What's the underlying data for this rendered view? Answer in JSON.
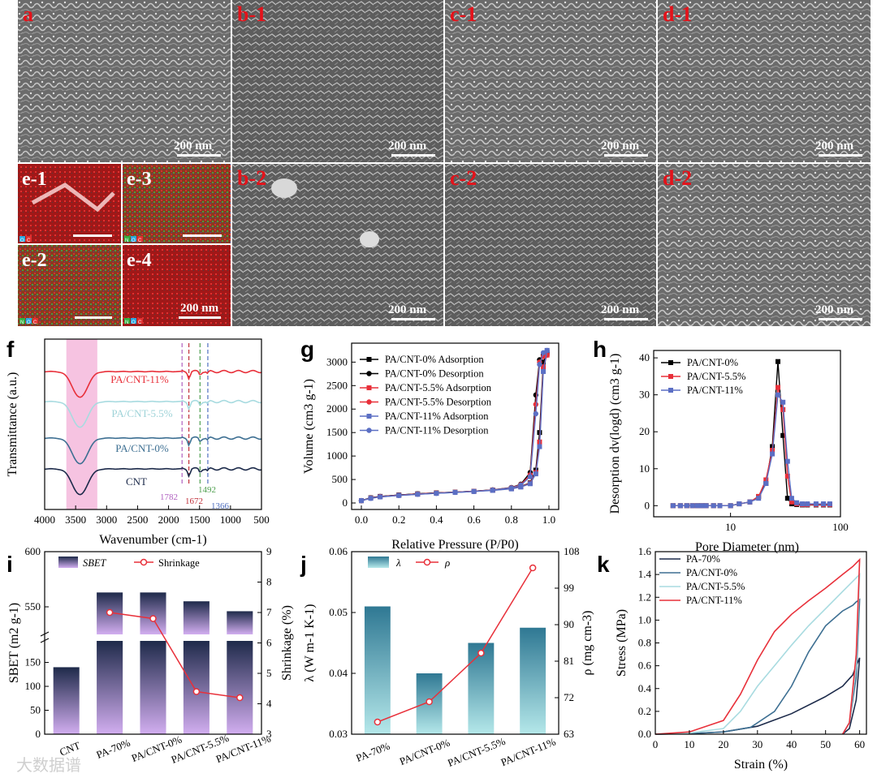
{
  "sem_panels": [
    {
      "id": "a",
      "label": "a",
      "scale": "200 nm"
    },
    {
      "id": "b1",
      "label": "b-1",
      "scale": "200 nm"
    },
    {
      "id": "c1",
      "label": "c-1",
      "scale": "200 nm"
    },
    {
      "id": "d1",
      "label": "d-1",
      "scale": "200 nm"
    },
    {
      "id": "b2",
      "label": "b-2",
      "scale": "200 nm"
    },
    {
      "id": "c2",
      "label": "c-2",
      "scale": "200 nm"
    },
    {
      "id": "d2",
      "label": "d-2",
      "scale": "200 nm"
    }
  ],
  "eds_panels": [
    {
      "id": "e1",
      "label": "e-1",
      "elements": [
        "O",
        "C"
      ]
    },
    {
      "id": "e3",
      "label": "e-3",
      "elements": [
        "N",
        "O",
        "C"
      ]
    },
    {
      "id": "e2",
      "label": "e-2",
      "elements": [
        "N",
        "O",
        "C"
      ]
    },
    {
      "id": "e4",
      "label": "e-4",
      "elements": [
        "N",
        "O",
        "C"
      ],
      "scale": "200 nm"
    }
  ],
  "panel_letters": {
    "f": "f",
    "g": "g",
    "h": "h",
    "i": "i",
    "j": "j",
    "k": "k"
  },
  "watermark": "大数据谱",
  "colors": {
    "black": "#000000",
    "red": "#e8303a",
    "blue": "#5b6fc4",
    "navy": "#1c2a4a",
    "steel": "#3d6f92",
    "light": "#a8dbe0",
    "pink": "#f5b8dc"
  },
  "chart_data": [
    {
      "id": "f",
      "type": "line",
      "xlabel": "Wavenumber (cm-1)",
      "ylabel": "Transmittance (a.u.)",
      "xlim": [
        4000,
        500
      ],
      "xticks": [
        "4000",
        "3500",
        "3000",
        "2500",
        "2000",
        "1500",
        "1000",
        "500"
      ],
      "series": [
        {
          "name": "PA/CNT-11%",
          "color": "#e8303a"
        },
        {
          "name": "PA/CNT-5.5%",
          "color": "#a8dbe0"
        },
        {
          "name": "PA/CNT-0%",
          "color": "#3d6f92"
        },
        {
          "name": "CNT",
          "color": "#1c2a4a"
        }
      ],
      "highlight_band": [
        3650,
        3150
      ],
      "peak_lines": [
        {
          "label": "1782",
          "x": 1782
        },
        {
          "label": "1672",
          "x": 1672
        },
        {
          "label": "1492",
          "x": 1492
        },
        {
          "label": "1366",
          "x": 1366
        }
      ]
    },
    {
      "id": "g",
      "type": "line",
      "xlabel": "Relative Pressure (P/P0)",
      "ylabel": "Volume (cm3 g-1)",
      "xlim": [
        0,
        1.0
      ],
      "ylim": [
        0,
        3300
      ],
      "xticks": [
        "0.0",
        "0.2",
        "0.4",
        "0.6",
        "0.8",
        "1.0"
      ],
      "yticks": [
        "0",
        "500",
        "1000",
        "1500",
        "2000",
        "2500",
        "3000"
      ],
      "x": [
        0.0,
        0.05,
        0.1,
        0.2,
        0.3,
        0.4,
        0.5,
        0.6,
        0.7,
        0.8,
        0.85,
        0.9,
        0.93,
        0.95,
        0.97,
        0.99
      ],
      "series": [
        {
          "name": "PA/CNT-0% Adsorption",
          "color": "#000000",
          "marker": "square",
          "values": [
            50,
            110,
            140,
            170,
            195,
            215,
            230,
            250,
            275,
            310,
            350,
            430,
            700,
            1500,
            3000,
            3200
          ]
        },
        {
          "name": "PA/CNT-0% Desorption",
          "color": "#000000",
          "marker": "circle",
          "values": [
            50,
            110,
            140,
            170,
            195,
            215,
            230,
            250,
            280,
            330,
            400,
            650,
            2300,
            3050,
            3150,
            3200
          ]
        },
        {
          "name": "PA/CNT-5.5% Adsorption",
          "color": "#e8303a",
          "marker": "square",
          "values": [
            50,
            105,
            135,
            165,
            190,
            210,
            228,
            248,
            272,
            305,
            345,
            420,
            650,
            1300,
            2900,
            3150
          ]
        },
        {
          "name": "PA/CNT-5.5% Desorption",
          "color": "#e8303a",
          "marker": "circle",
          "values": [
            50,
            105,
            135,
            165,
            190,
            210,
            228,
            248,
            278,
            325,
            390,
            600,
            2100,
            3000,
            3120,
            3150
          ]
        },
        {
          "name": "PA/CNT-11% Adsorption",
          "color": "#5b6fc4",
          "marker": "square",
          "values": [
            50,
            100,
            130,
            160,
            185,
            205,
            225,
            245,
            268,
            300,
            340,
            410,
            620,
            1200,
            2800,
            3250
          ]
        },
        {
          "name": "PA/CNT-11% Desorption",
          "color": "#5b6fc4",
          "marker": "circle",
          "values": [
            50,
            100,
            130,
            160,
            185,
            205,
            225,
            245,
            275,
            320,
            380,
            560,
            1900,
            2950,
            3200,
            3250
          ]
        }
      ]
    },
    {
      "id": "h",
      "type": "line",
      "xlabel": "Pore Diameter (nm)",
      "ylabel": "Desorption dv(logd) (cm3 g-1)",
      "xscale": "log",
      "xlim": [
        2,
        100
      ],
      "ylim": [
        -3,
        42
      ],
      "xticks": [
        "10",
        "100"
      ],
      "yticks": [
        "0",
        "10",
        "20",
        "30",
        "40"
      ],
      "x": [
        3,
        3.5,
        4,
        4.5,
        5,
        5.5,
        6,
        7,
        8,
        10,
        12,
        15,
        18,
        21,
        24,
        27,
        30,
        33,
        36,
        40,
        45,
        50,
        60,
        70,
        80
      ],
      "series": [
        {
          "name": "PA/CNT-0%",
          "color": "#000000",
          "marker": "square",
          "values": [
            0,
            0,
            0,
            0,
            0,
            0,
            0,
            0,
            0,
            0,
            0.5,
            1,
            2.5,
            6,
            16,
            39,
            19,
            2,
            0.5,
            0.3,
            0.2,
            0.2,
            0.2,
            0.2,
            0.2
          ]
        },
        {
          "name": "PA/CNT-5.5%",
          "color": "#e8303a",
          "marker": "square",
          "values": [
            0,
            0,
            0,
            0,
            0,
            0,
            0,
            0,
            0,
            0,
            0.5,
            1,
            2.5,
            7,
            15,
            32,
            26,
            8,
            1,
            0.5,
            0.3,
            0.3,
            0.3,
            0.3,
            0.3
          ]
        },
        {
          "name": "PA/CNT-11%",
          "color": "#5b6fc4",
          "marker": "square",
          "values": [
            0,
            0,
            0,
            0,
            0,
            0,
            0,
            0,
            0,
            0,
            0.5,
            1,
            2,
            6,
            14,
            30,
            28,
            12,
            2,
            0.8,
            0.5,
            0.5,
            0.5,
            0.5,
            0.5
          ]
        }
      ]
    },
    {
      "id": "i",
      "type": "bar",
      "title": "",
      "categories": [
        "CNT",
        "PA-70%",
        "PA/CNT-0%",
        "PA/CNT-5.5%",
        "PA/CNT-11%"
      ],
      "series": [
        {
          "name": "SBET",
          "values": [
            140,
            563,
            563,
            555,
            546
          ]
        },
        {
          "name": "Shrinkage",
          "values": [
            null,
            7.0,
            6.8,
            4.4,
            4.2
          ]
        }
      ],
      "ylabel": "SBET (m2 g-1)",
      "y2label": "Shrinkage (%)",
      "yticks_low": [
        "0",
        "50",
        "100",
        "150"
      ],
      "yticks_high": [
        "550",
        "600"
      ],
      "y2lim": [
        3,
        9
      ],
      "y2ticks": [
        "3",
        "4",
        "5",
        "6",
        "7",
        "8",
        "9"
      ],
      "legend": [
        "SBET",
        "Shrinkage"
      ]
    },
    {
      "id": "j",
      "type": "bar",
      "categories": [
        "PA-70%",
        "PA/CNT-0%",
        "PA/CNT-5.5%",
        "PA/CNT-11%"
      ],
      "series": [
        {
          "name": "λ",
          "values": [
            0.051,
            0.04,
            0.045,
            0.0475
          ]
        },
        {
          "name": "ρ",
          "values": [
            66,
            71,
            83,
            104
          ]
        }
      ],
      "ylabel": "λ (W m-1 K-1)",
      "y2label": "ρ (mg cm-3)",
      "ylim": [
        0.03,
        0.06
      ],
      "yticks": [
        "0.03",
        "0.04",
        "0.05",
        "0.06"
      ],
      "y2lim": [
        63,
        108
      ],
      "y2ticks": [
        "63",
        "72",
        "81",
        "90",
        "99",
        "108"
      ],
      "legend": [
        "λ",
        "ρ"
      ]
    },
    {
      "id": "k",
      "type": "line",
      "xlabel": "Strain (%)",
      "ylabel": "Stress (MPa)",
      "xlim": [
        0,
        62
      ],
      "ylim": [
        0,
        1.6
      ],
      "xticks": [
        "0",
        "10",
        "20",
        "30",
        "40",
        "50",
        "60"
      ],
      "yticks": [
        "0.0",
        "0.2",
        "0.4",
        "0.6",
        "0.8",
        "1.0",
        "1.2",
        "1.4",
        "1.6"
      ],
      "series": [
        {
          "name": "PA-70%",
          "color": "#1c2a4a",
          "x": [
            0,
            10,
            20,
            30,
            40,
            50,
            55,
            58,
            59,
            60,
            59,
            57,
            55
          ],
          "values": [
            0,
            0.005,
            0.02,
            0.07,
            0.18,
            0.33,
            0.42,
            0.52,
            0.6,
            0.67,
            0.3,
            0.05,
            0
          ]
        },
        {
          "name": "PA/CNT-0%",
          "color": "#3d6f92",
          "x": [
            0,
            10,
            20,
            28,
            35,
            40,
            45,
            50,
            55,
            58,
            59,
            60,
            59,
            57,
            55
          ],
          "values": [
            0,
            0.005,
            0.02,
            0.06,
            0.2,
            0.42,
            0.72,
            0.95,
            1.08,
            1.13,
            1.16,
            1.18,
            0.5,
            0.1,
            0
          ]
        },
        {
          "name": "PA/CNT-5.5%",
          "color": "#a8dbe0",
          "x": [
            0,
            10,
            20,
            25,
            30,
            35,
            40,
            45,
            50,
            55,
            58,
            59,
            60,
            59,
            57,
            55
          ],
          "values": [
            0,
            0.01,
            0.05,
            0.2,
            0.42,
            0.6,
            0.78,
            0.95,
            1.1,
            1.25,
            1.34,
            1.37,
            1.4,
            0.6,
            0.1,
            0
          ]
        },
        {
          "name": "PA/CNT-11%",
          "color": "#e8303a",
          "x": [
            0,
            10,
            20,
            25,
            30,
            35,
            40,
            45,
            50,
            55,
            58,
            59,
            60,
            59,
            57,
            55
          ],
          "values": [
            0,
            0.02,
            0.12,
            0.35,
            0.65,
            0.9,
            1.05,
            1.17,
            1.28,
            1.4,
            1.47,
            1.5,
            1.53,
            0.7,
            0.1,
            0
          ]
        }
      ]
    }
  ]
}
